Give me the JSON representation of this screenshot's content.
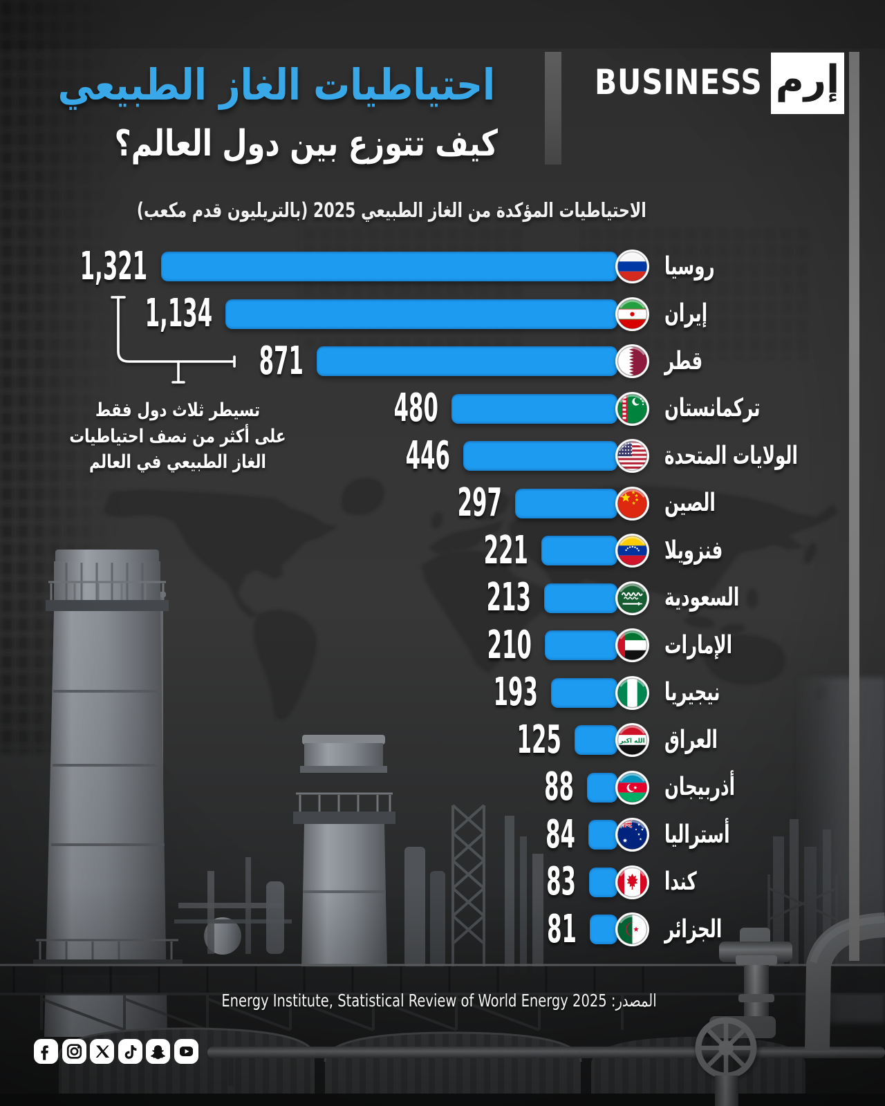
{
  "header": {
    "title_line1": "احتياطيات الغاز الطبيعي",
    "title_line2": "كيف تتوزع بين دول العالم؟",
    "brand": {
      "wordmark": "BUSINESS",
      "logo_text": "إرم"
    }
  },
  "subtitle": "الاحتياطيات المؤكدة من الغاز الطبيعي 2025 (بالتريليون قدم مكعب)",
  "annotation": {
    "line1": "تسيطر ثلاث دول فقط",
    "line2": "على أكثر من نصف احتياطيات",
    "line3": "الغاز الطبيعي في العالم"
  },
  "source": {
    "label": "المصدر:",
    "text": "Energy Institute, Statistical Review of World Energy 2025"
  },
  "social_icons": [
    "facebook",
    "instagram",
    "x",
    "tiktok",
    "snapchat",
    "youtube"
  ],
  "colors": {
    "bar_blue": "#1d9bf0",
    "title_blue": "#38a8e8",
    "background_dark": "#2f2f2f",
    "text_white": "#ffffff"
  },
  "chart_data": {
    "type": "bar",
    "orientation": "horizontal_rtl",
    "title": "الاحتياطيات المؤكدة من الغاز الطبيعي 2025 (بالتريليون قدم مكعب)",
    "unit": "trillion cubic feet",
    "year": "2025",
    "categories": [
      "روسيا",
      "إيران",
      "قطر",
      "تركمانستان",
      "الولايات المتحدة",
      "الصين",
      "فنزويلا",
      "السعودية",
      "الإمارات",
      "نيجيريا",
      "العراق",
      "أذربيجان",
      "أستراليا",
      "كندا",
      "الجزائر"
    ],
    "values": [
      1321,
      1134,
      871,
      480,
      446,
      297,
      221,
      213,
      210,
      193,
      125,
      88,
      84,
      83,
      81
    ],
    "value_labels": [
      "1,321",
      "1,134",
      "871",
      "480",
      "446",
      "297",
      "221",
      "213",
      "210",
      "193",
      "125",
      "88",
      "84",
      "83",
      "81"
    ],
    "flags": [
      "russia",
      "iran",
      "qatar",
      "turkmenistan",
      "usa",
      "china",
      "venezuela",
      "saudi-arabia",
      "uae",
      "nigeria",
      "iraq",
      "azerbaijan",
      "australia",
      "canada",
      "algeria"
    ],
    "xlim": [
      0,
      1400
    ],
    "grid": false,
    "legend": false
  }
}
